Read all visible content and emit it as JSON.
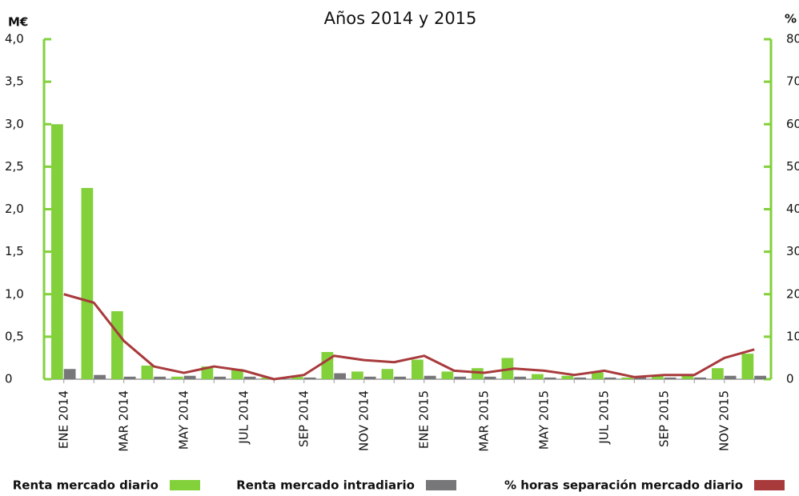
{
  "chart_data": {
    "type": "bar_line",
    "title": "Años 2014 y 2015",
    "y_label": "M€",
    "y2_label": "%",
    "categories": [
      "ENE 2014",
      null,
      "MAR 2014",
      null,
      "MAY 2014",
      null,
      "JUL 2014",
      null,
      "SEP 2014",
      null,
      "NOV 2014",
      null,
      "ENE 2015",
      null,
      "MAR 2015",
      null,
      "MAY 2015",
      null,
      "JUL 2015",
      null,
      "SEP 2015",
      null,
      "NOV 2015",
      null
    ],
    "series": [
      {
        "name": "Renta mercado diario",
        "color": "#82d13b",
        "kind": "bar",
        "values": [
          3.0,
          2.25,
          0.8,
          0.16,
          0.03,
          0.15,
          0.12,
          0.02,
          0.03,
          0.32,
          0.09,
          0.12,
          0.23,
          0.09,
          0.13,
          0.25,
          0.06,
          0.04,
          0.08,
          0.02,
          0.04,
          0.06,
          0.13,
          0.3
        ]
      },
      {
        "name": "Renta mercado intradiario",
        "color": "#77777a",
        "kind": "bar",
        "values": [
          0.12,
          0.05,
          0.03,
          0.03,
          0.04,
          0.03,
          0.03,
          0.01,
          0.02,
          0.07,
          0.03,
          0.03,
          0.04,
          0.03,
          0.03,
          0.03,
          0.02,
          0.02,
          0.02,
          0.02,
          0.02,
          0.02,
          0.04,
          0.04
        ]
      },
      {
        "name": "% horas separación mercado diario",
        "color": "#a83a3c",
        "kind": "line",
        "axis": "y2",
        "values": [
          20,
          18,
          9,
          3,
          1.5,
          3,
          2,
          0,
          1,
          5.5,
          4.5,
          4,
          5.5,
          2,
          1.5,
          2.5,
          2,
          1,
          2,
          0.5,
          1,
          1,
          5,
          7
        ]
      }
    ],
    "ylim": [
      0,
      4
    ],
    "yticks": [
      0,
      {
        "value": 0.5,
        "label": "0,5"
      },
      {
        "value": 1,
        "label": "1,0"
      },
      {
        "value": 1.5,
        "label": "1,5"
      },
      {
        "value": 2,
        "label": "2,0"
      },
      {
        "value": 2.5,
        "label": "2,5"
      },
      {
        "value": 3,
        "label": "3,0"
      },
      {
        "value": 3.5,
        "label": "3,5"
      },
      {
        "value": 4,
        "label": "4,0"
      }
    ],
    "y2lim": [
      0,
      80
    ],
    "y2ticks": [
      0,
      10,
      20,
      30,
      40,
      50,
      60,
      70,
      80
    ]
  }
}
